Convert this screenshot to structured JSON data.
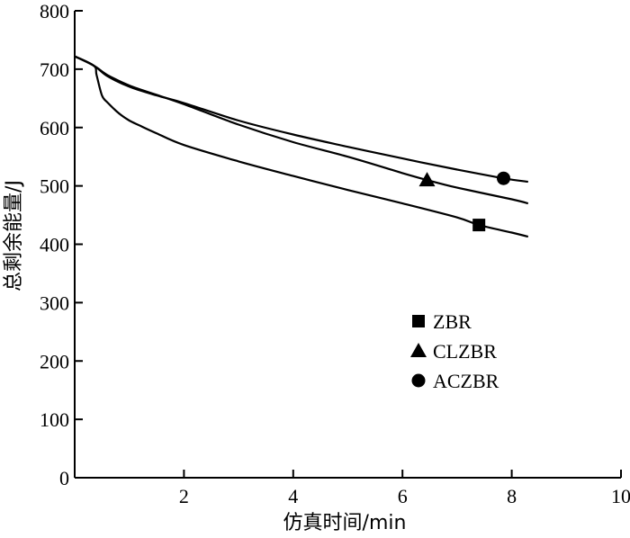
{
  "chart_data": {
    "type": "line",
    "title": "",
    "xlabel": "仿真时间/min",
    "ylabel": "总剩余能量/J",
    "xlim": [
      0,
      10
    ],
    "ylim": [
      0,
      800
    ],
    "xticks": [
      2,
      4,
      6,
      8,
      10
    ],
    "xtick_labels": [
      "2",
      "4",
      "6",
      "8",
      "10"
    ],
    "yticks": [
      0,
      100,
      200,
      300,
      400,
      500,
      600,
      700,
      800
    ],
    "ytick_labels": [
      "0",
      "100",
      "200",
      "300",
      "400",
      "500",
      "600",
      "700",
      "800"
    ],
    "grid": false,
    "legend_position": "bottom-right",
    "series": [
      {
        "name": "ZBR",
        "marker": "square",
        "color": "#000000",
        "x": [
          0,
          0.35,
          0.4,
          0.5,
          0.6,
          0.8,
          1.0,
          1.2,
          1.5,
          2.0,
          3.0,
          4.0,
          5.0,
          6.0,
          7.0,
          7.4,
          8.0,
          8.3
        ],
        "y": [
          722,
          706,
          690,
          655,
          643,
          625,
          612,
          603,
          590,
          570,
          542,
          517,
          493,
          470,
          446,
          433,
          420,
          413
        ],
        "marker_x": 7.4,
        "marker_y": 433
      },
      {
        "name": "CLZBR",
        "marker": "triangle",
        "color": "#000000",
        "x": [
          0,
          0.35,
          0.6,
          1.0,
          1.5,
          2.0,
          3.0,
          4.0,
          5.0,
          6.0,
          6.45,
          7.0,
          8.0,
          8.3
        ],
        "y": [
          722,
          706,
          690,
          672,
          656,
          640,
          605,
          575,
          550,
          522,
          510,
          497,
          477,
          470
        ],
        "marker_x": 6.45,
        "marker_y": 510
      },
      {
        "name": "ACZBR",
        "marker": "circle",
        "color": "#000000",
        "x": [
          0,
          0.35,
          0.6,
          1.0,
          1.5,
          2.0,
          3.0,
          4.0,
          5.0,
          6.0,
          7.0,
          7.85,
          8.3
        ],
        "y": [
          722,
          706,
          688,
          670,
          655,
          642,
          612,
          588,
          567,
          547,
          528,
          513,
          507
        ],
        "marker_x": 7.85,
        "marker_y": 513
      }
    ]
  }
}
